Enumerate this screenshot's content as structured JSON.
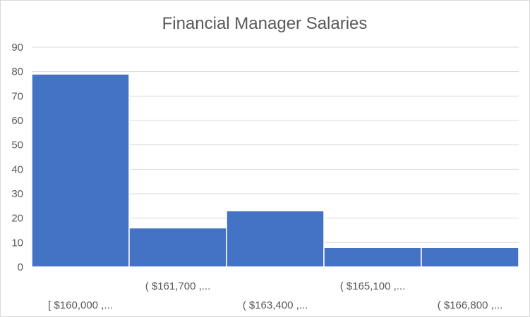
{
  "chart_data": {
    "type": "bar",
    "title": "Financial Manager Salaries",
    "categories": [
      "[ $160,000 ,...",
      "( $161,700 ,...",
      "( $163,400 ,...",
      "( $165,100 ,...",
      "( $166,800 ,..."
    ],
    "values": [
      79,
      16,
      23,
      8,
      8
    ],
    "ylim": [
      0,
      90
    ],
    "yticks": [
      0,
      10,
      20,
      30,
      40,
      50,
      60,
      70,
      80,
      90
    ],
    "xlabel": "",
    "ylabel": "",
    "grid": true,
    "legend": "none",
    "bar_color": "#4472c4",
    "bar_gap": 0
  }
}
